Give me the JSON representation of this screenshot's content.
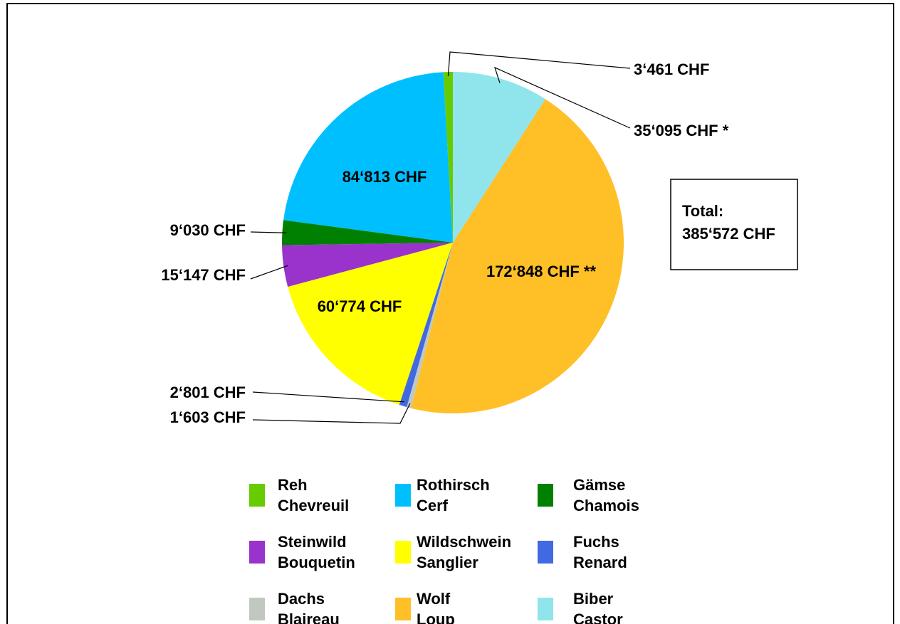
{
  "chart_data": {
    "type": "pie",
    "categories": [
      [
        "Reh",
        "Chevreuil"
      ],
      [
        "Rothirsch",
        "Cerf"
      ],
      [
        "Gämse",
        "Chamois"
      ],
      [
        "Steinwild",
        "Bouquetin"
      ],
      [
        "Wildschwein",
        "Sanglier"
      ],
      [
        "Fuchs",
        "Renard"
      ],
      [
        "Dachs",
        "Blaireau"
      ],
      [
        "Wolf",
        "Loup"
      ],
      [
        "Biber",
        "Castor"
      ]
    ],
    "values": [
      3461,
      84813,
      9030,
      15147,
      60774,
      2801,
      1603,
      172848,
      35095
    ],
    "value_labels": [
      "3‘461 CHF",
      "84‘813 CHF",
      "9‘030 CHF",
      "15‘147 CHF",
      "60‘774 CHF",
      "2‘801 CHF",
      "1‘603 CHF",
      "172‘848 CHF **",
      "35‘095 CHF *"
    ],
    "colors": [
      "#66cc00",
      "#00bfff",
      "#008000",
      "#9933cc",
      "#ffff00",
      "#4169e1",
      "#c0c8c0",
      "#ffbf26",
      "#90e4ec"
    ],
    "annotation": [
      "Total:",
      "385‘572 CHF"
    ]
  }
}
